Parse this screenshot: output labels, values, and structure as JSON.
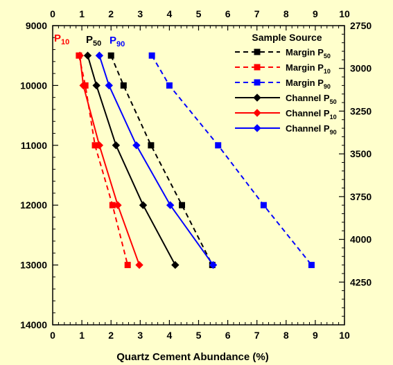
{
  "chart_data": {
    "type": "line",
    "title": "",
    "xlabel": "Quartz Cement Abundance (%)",
    "ylabel": "",
    "xlim": [
      0,
      10
    ],
    "ylim_left": [
      9000,
      14000
    ],
    "ylim_right": [
      2750,
      4500
    ],
    "x_ticks": [
      "0",
      "1",
      "2",
      "3",
      "4",
      "5",
      "6",
      "7",
      "8",
      "9",
      "10"
    ],
    "y_ticks_left": [
      "9000",
      "10000",
      "11000",
      "12000",
      "13000",
      "14000"
    ],
    "y_ticks_right": [
      "2750",
      "3000",
      "3250",
      "3500",
      "3750",
      "4000",
      "4250"
    ],
    "legend_title": "Sample Source",
    "legend_position": "top-right",
    "colors": {
      "black": "#000000",
      "red": "#ff0000",
      "blue": "#0000ff",
      "background": "#ffffcc"
    },
    "series": [
      {
        "label": "Margin P",
        "sub": "50",
        "color": "#000000",
        "dash": true,
        "marker": "square",
        "points": [
          [
            2.0,
            9500
          ],
          [
            2.43,
            10000
          ],
          [
            3.37,
            11000
          ],
          [
            4.43,
            12000
          ],
          [
            5.47,
            13000
          ]
        ]
      },
      {
        "label": "Margin P",
        "sub": "10",
        "color": "#ff0000",
        "dash": true,
        "marker": "square",
        "points": [
          [
            0.9,
            9500
          ],
          [
            1.12,
            10000
          ],
          [
            1.45,
            11000
          ],
          [
            2.05,
            12000
          ],
          [
            2.57,
            13000
          ]
        ]
      },
      {
        "label": "Margin P",
        "sub": "90",
        "color": "#0000ff",
        "dash": true,
        "marker": "square",
        "points": [
          [
            3.4,
            9500
          ],
          [
            4.0,
            10000
          ],
          [
            5.67,
            11000
          ],
          [
            7.23,
            12000
          ],
          [
            8.87,
            13000
          ]
        ]
      },
      {
        "label": "Channel P",
        "sub": "50",
        "color": "#000000",
        "dash": false,
        "marker": "diamond",
        "points": [
          [
            1.2,
            9500
          ],
          [
            1.5,
            10000
          ],
          [
            2.17,
            11000
          ],
          [
            3.1,
            12000
          ],
          [
            4.2,
            13000
          ]
        ]
      },
      {
        "label": "Channel P",
        "sub": "10",
        "color": "#ff0000",
        "dash": false,
        "marker": "diamond",
        "points": [
          [
            0.93,
            9500
          ],
          [
            1.05,
            10000
          ],
          [
            1.6,
            11000
          ],
          [
            2.23,
            12000
          ],
          [
            2.97,
            13000
          ]
        ]
      },
      {
        "label": "Channel P",
        "sub": "90",
        "color": "#0000ff",
        "dash": false,
        "marker": "diamond",
        "points": [
          [
            1.6,
            9500
          ],
          [
            1.93,
            10000
          ],
          [
            2.87,
            11000
          ],
          [
            4.03,
            12000
          ],
          [
            5.5,
            13000
          ]
        ]
      }
    ],
    "annotations": [
      {
        "text": "P",
        "sub": "10",
        "color": "#ff0000"
      },
      {
        "text": "P",
        "sub": "50",
        "color": "#000000"
      },
      {
        "text": "P",
        "sub": "90",
        "color": "#0000ff"
      }
    ]
  }
}
